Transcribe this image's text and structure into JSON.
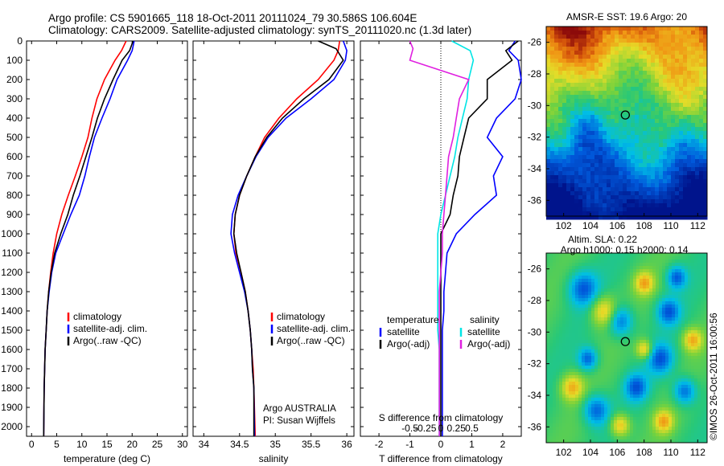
{
  "header": {
    "line1": "Argo profile: CS 5901665_118 18-Oct-2011 20111024_79 30.586S 106.604E",
    "line2": "Climatology: CARS2009. Satellite-adjusted climatology: synTS_20111020.nc (1.3d later)"
  },
  "side_stamp": "©IMOS 26-Oct-2011 16:00:56",
  "colors": {
    "climatology": "#ff0000",
    "satellite": "#0000ff",
    "argo": "#000000",
    "sat_salinity": "#00e5e5",
    "argo_salinity": "#e020e0"
  },
  "chart_data": [
    {
      "type": "line",
      "id": "temperature",
      "xlabel": "temperature (deg C)",
      "xlim": [
        -1,
        31
      ],
      "ylim": [
        0,
        2050
      ],
      "xticks": [
        0,
        5,
        10,
        15,
        20,
        25,
        30
      ],
      "yticks": [
        0,
        100,
        200,
        300,
        400,
        500,
        600,
        700,
        800,
        900,
        1000,
        1100,
        1200,
        1300,
        1400,
        1500,
        1600,
        1700,
        1800,
        1900,
        2000
      ],
      "legend": [
        "climatology",
        "satellite-adj. clim.",
        "Argo(..raw -QC)"
      ],
      "series": [
        {
          "name": "climatology",
          "color": "#ff0000",
          "x": [
            18.8,
            17.9,
            16.6,
            14.5,
            13.0,
            12.0,
            11.2,
            10.0,
            8.7,
            7.3,
            6.0,
            5.0,
            4.3,
            3.8,
            3.4,
            3.1,
            2.9,
            2.7,
            2.6,
            2.5,
            2.4
          ],
          "y": [
            0,
            50,
            100,
            200,
            300,
            400,
            500,
            600,
            700,
            800,
            900,
            1000,
            1100,
            1200,
            1300,
            1400,
            1500,
            1600,
            1700,
            1800,
            2050
          ]
        },
        {
          "name": "satellite-adj. clim.",
          "color": "#0000ff",
          "x": [
            20.4,
            20.0,
            19.1,
            17.0,
            15.6,
            14.0,
            12.5,
            11.5,
            10.6,
            9.5,
            7.8,
            6.3,
            4.8,
            4.0,
            3.5,
            3.1,
            2.9,
            2.7,
            2.6,
            2.5,
            2.4
          ],
          "y": [
            0,
            50,
            100,
            200,
            300,
            400,
            500,
            600,
            700,
            800,
            900,
            1000,
            1100,
            1200,
            1300,
            1400,
            1500,
            1600,
            1700,
            1800,
            2050
          ]
        },
        {
          "name": "Argo(..raw -QC)",
          "color": "#000000",
          "x": [
            20.2,
            19.5,
            18.0,
            16.2,
            14.5,
            13.1,
            12.0,
            10.8,
            9.6,
            8.3,
            7.2,
            5.8,
            4.6,
            3.9,
            3.4,
            3.1,
            2.9,
            2.7,
            2.6,
            2.5,
            2.4
          ],
          "y": [
            0,
            50,
            100,
            200,
            300,
            400,
            500,
            600,
            700,
            800,
            900,
            1000,
            1100,
            1200,
            1300,
            1400,
            1500,
            1600,
            1700,
            1800,
            2050
          ]
        }
      ]
    },
    {
      "type": "line",
      "id": "salinity",
      "xlabel": "salinity",
      "xlim": [
        33.85,
        36.1
      ],
      "ylim": [
        0,
        2050
      ],
      "xticks": [
        34,
        34.5,
        35,
        35.5,
        36
      ],
      "legend": [
        "climatology",
        "satellite-adj. clim.",
        "Argo(..raw -QC)"
      ],
      "annotation": [
        "Argo AUSTRALIA",
        "PI: Susan Wijffels"
      ],
      "series": [
        {
          "name": "climatology",
          "color": "#ff0000",
          "x": [
            35.9,
            35.88,
            35.82,
            35.6,
            35.3,
            35.05,
            34.85,
            34.72,
            34.6,
            34.5,
            34.44,
            34.42,
            34.45,
            34.52,
            34.58,
            34.62,
            34.65,
            34.67,
            34.69,
            34.7,
            34.72
          ],
          "y": [
            0,
            50,
            100,
            200,
            300,
            400,
            500,
            600,
            700,
            800,
            900,
            1000,
            1100,
            1200,
            1300,
            1400,
            1500,
            1600,
            1700,
            1800,
            2050
          ]
        },
        {
          "name": "satellite-adj. clim.",
          "color": "#0000ff",
          "x": [
            35.95,
            36.0,
            35.98,
            35.82,
            35.5,
            35.15,
            34.9,
            34.73,
            34.6,
            34.48,
            34.4,
            34.38,
            34.43,
            34.5,
            34.57,
            34.62,
            34.65,
            34.67,
            34.68,
            34.7,
            34.71
          ],
          "y": [
            0,
            50,
            100,
            200,
            300,
            400,
            500,
            600,
            700,
            800,
            900,
            1000,
            1100,
            1200,
            1300,
            1400,
            1500,
            1600,
            1700,
            1800,
            2050
          ]
        },
        {
          "name": "Argo(..raw -QC)",
          "color": "#000000",
          "x": [
            35.6,
            35.85,
            35.95,
            35.75,
            35.4,
            35.1,
            34.88,
            34.72,
            34.6,
            34.5,
            34.44,
            34.42,
            34.46,
            34.52,
            34.58,
            34.62,
            34.65,
            34.67,
            34.68,
            34.7,
            34.7
          ],
          "y": [
            0,
            40,
            100,
            200,
            300,
            400,
            500,
            600,
            700,
            800,
            900,
            1000,
            1100,
            1200,
            1300,
            1400,
            1500,
            1600,
            1700,
            1800,
            2050
          ]
        }
      ]
    },
    {
      "type": "line",
      "id": "difference",
      "xlabel": "T difference from climatology",
      "xlabel_top": "S difference from climatology",
      "xlim": [
        -2.6,
        2.6
      ],
      "ylim": [
        0,
        2050
      ],
      "xticks_T": [
        -2,
        -1,
        0,
        1,
        2
      ],
      "xticks_S": [
        "-0.5",
        "-0.25",
        "0",
        "0.25",
        "0.5"
      ],
      "legend_temperature": {
        "title": "temperature",
        "items": [
          "satellite",
          "Argo(-adj)"
        ]
      },
      "legend_salinity": {
        "title": "salinity",
        "items": [
          "satellite",
          "Argo(-adj)"
        ]
      },
      "series": [
        {
          "name": "temperature satellite",
          "color": "#0000ff",
          "x": [
            2.4,
            2.2,
            2.5,
            2.6,
            2.4,
            1.8,
            1.5,
            2.0,
            1.7,
            1.8,
            1.1,
            0.5,
            0.2,
            0.15,
            0.1,
            0.1,
            0.05,
            0.05,
            0.05,
            0.05,
            0.05
          ],
          "y": [
            0,
            50,
            100,
            200,
            300,
            400,
            500,
            600,
            700,
            800,
            900,
            1000,
            1100,
            1200,
            1300,
            1400,
            1500,
            1600,
            1700,
            1800,
            2050
          ]
        },
        {
          "name": "temperature Argo(-adj)",
          "color": "#000000",
          "x": [
            2.5,
            2.1,
            2.3,
            1.5,
            1.5,
            0.9,
            0.75,
            0.6,
            0.55,
            0.4,
            0.3,
            0.0,
            0.0,
            0.0,
            0.0,
            0.0,
            0.0,
            0.0,
            0.0,
            0.0,
            0.0
          ],
          "y": [
            0,
            50,
            100,
            200,
            300,
            400,
            500,
            600,
            700,
            800,
            900,
            1000,
            1100,
            1200,
            1300,
            1400,
            1500,
            1600,
            1700,
            1800,
            2050
          ]
        },
        {
          "name": "salinity satellite",
          "color": "#00e5e5",
          "x": [
            0.35,
            0.95,
            1.05,
            0.9,
            0.85,
            0.7,
            0.55,
            0.45,
            0.3,
            0.15,
            0.0,
            -0.1,
            -0.1,
            -0.1,
            -0.1,
            -0.1,
            -0.1,
            -0.05,
            -0.05,
            -0.05,
            -0.05
          ],
          "y": [
            0,
            50,
            100,
            200,
            300,
            400,
            500,
            600,
            700,
            800,
            900,
            1000,
            1100,
            1200,
            1300,
            1400,
            1500,
            1600,
            1700,
            1800,
            2050
          ]
        },
        {
          "name": "salinity Argo(-adj)",
          "color": "#e020e0",
          "x": [
            -1.0,
            -0.9,
            -1.0,
            0.9,
            0.6,
            0.5,
            0.4,
            0.25,
            0.2,
            0.15,
            0.1,
            0.05,
            0.05,
            0.0,
            -0.05,
            -0.05,
            -0.05,
            -0.05,
            -0.05,
            -0.05,
            -0.05
          ],
          "y": [
            0,
            40,
            100,
            200,
            300,
            400,
            500,
            600,
            700,
            800,
            900,
            1000,
            1100,
            1200,
            1300,
            1400,
            1500,
            1600,
            1700,
            1800,
            2050
          ]
        }
      ]
    },
    {
      "type": "heatmap",
      "id": "sst_map",
      "title": "AMSR-E SST: 19.6 Argo: 20",
      "xlim": [
        100.7,
        112.7
      ],
      "ylim": [
        -37,
        -25
      ],
      "xticks": [
        102,
        104,
        106,
        108,
        110,
        112
      ],
      "yticks": [
        -26,
        -28,
        -30,
        -32,
        -34,
        -36
      ],
      "marker": {
        "lon": 106.6,
        "lat": -30.6
      }
    },
    {
      "type": "heatmap",
      "id": "sla_map",
      "title": "Altim. SLA: 0.22",
      "subtitle": "Argo h1000: 0.15 h2000: 0.14",
      "xlim": [
        100.7,
        112.7
      ],
      "ylim": [
        -37,
        -25
      ],
      "xticks": [
        102,
        104,
        106,
        108,
        110,
        112
      ],
      "yticks": [
        -26,
        -28,
        -30,
        -32,
        -34,
        -36
      ],
      "marker": {
        "lon": 106.6,
        "lat": -30.6
      }
    }
  ]
}
